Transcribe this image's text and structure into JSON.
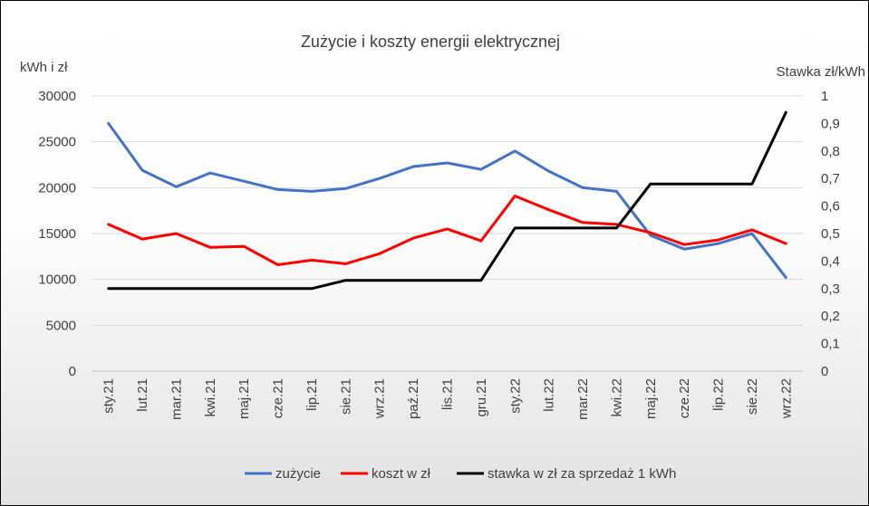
{
  "chart_data": {
    "type": "line",
    "title": "Zużycie i koszty energii elektrycznej",
    "ylabel_left": "kWh i zł",
    "ylabel_right": "Stawka zł/kWh",
    "categories": [
      "sty.21",
      "lut.21",
      "mar.21",
      "kwi.21",
      "maj.21",
      "cze.21",
      "lip.21",
      "sie.21",
      "wrz.21",
      "paź.21",
      "lis.21",
      "gru.21",
      "sty.22",
      "lut.22",
      "mar.22",
      "kwi.22",
      "maj.22",
      "cze.22",
      "lip.22",
      "sie.22",
      "wrz.22"
    ],
    "ylim_left": [
      0,
      30000
    ],
    "yticks_left": [
      "0",
      "5000",
      "10000",
      "15000",
      "20000",
      "25000",
      "30000"
    ],
    "ylim_right": [
      0,
      1
    ],
    "yticks_right": [
      "0",
      "0,1",
      "0,2",
      "0,3",
      "0,4",
      "0,5",
      "0,6",
      "0,7",
      "0,8",
      "0,9",
      "1"
    ],
    "grid": true,
    "legend_position": "bottom",
    "series": [
      {
        "name": "zużycie",
        "axis": "left",
        "color": "#4472C4",
        "values": [
          27000,
          21900,
          20100,
          21600,
          20700,
          19800,
          19600,
          19900,
          21000,
          22300,
          22700,
          22000,
          24000,
          21800,
          20000,
          19600,
          14800,
          13300,
          13900,
          15000,
          10200
        ]
      },
      {
        "name": "koszt w zł",
        "axis": "left",
        "color": "#FF0000",
        "values": [
          16000,
          14400,
          15000,
          13500,
          13600,
          11600,
          12100,
          11700,
          12800,
          14500,
          15500,
          14200,
          19100,
          17600,
          16200,
          16000,
          15100,
          13800,
          14300,
          15400,
          13900
        ]
      },
      {
        "name": "stawka w zł za sprzedaż 1 kWh",
        "axis": "right",
        "color": "#000000",
        "values": [
          0.3,
          0.3,
          0.3,
          0.3,
          0.3,
          0.3,
          0.3,
          0.33,
          0.33,
          0.33,
          0.33,
          0.33,
          0.52,
          0.52,
          0.52,
          0.52,
          0.68,
          0.68,
          0.68,
          0.68,
          0.94
        ]
      }
    ]
  }
}
